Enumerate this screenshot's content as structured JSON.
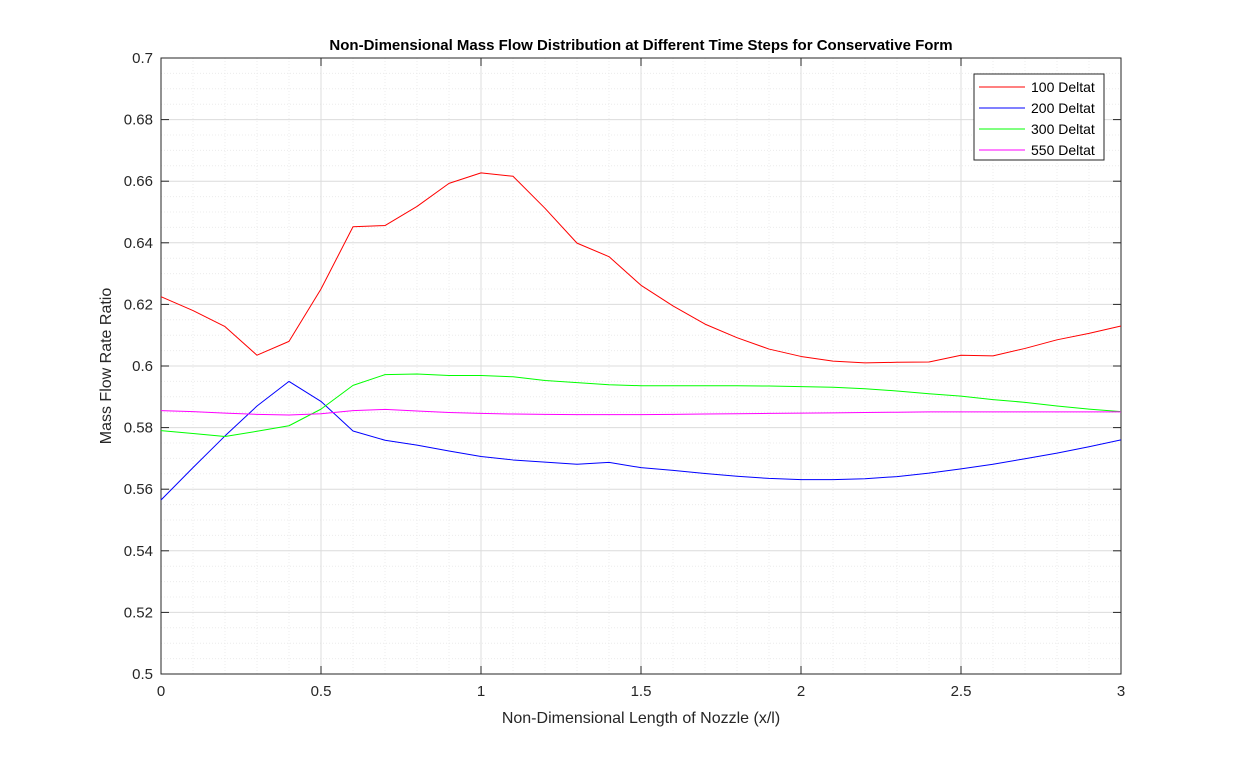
{
  "chart_data": {
    "type": "line",
    "title": "Non-Dimensional Mass Flow Distribution at Different Time Steps for Conservative Form",
    "xlabel": "Non-Dimensional Length of Nozzle (x/l)",
    "ylabel": "Mass Flow Rate Ratio",
    "xlim": [
      0,
      3
    ],
    "ylim": [
      0.5,
      0.7
    ],
    "xticks": [
      0,
      0.5,
      1,
      1.5,
      2,
      2.5,
      3
    ],
    "xtick_labels": [
      "0",
      "0.5",
      "1",
      "1.5",
      "2",
      "2.5",
      "3"
    ],
    "yticks": [
      0.5,
      0.52,
      0.54,
      0.56,
      0.58,
      0.6,
      0.62,
      0.64,
      0.66,
      0.68,
      0.7
    ],
    "ytick_labels": [
      "0.5",
      "0.52",
      "0.54",
      "0.56",
      "0.58",
      "0.6",
      "0.62",
      "0.64",
      "0.66",
      "0.68",
      "0.7"
    ],
    "grid": true,
    "minor_grid": true,
    "legend_position": "top-right",
    "x": [
      0,
      0.1,
      0.2,
      0.3,
      0.4,
      0.5,
      0.6,
      0.7,
      0.8,
      0.9,
      1.0,
      1.1,
      1.2,
      1.3,
      1.4,
      1.5,
      1.6,
      1.7,
      1.8,
      1.9,
      2.0,
      2.1,
      2.2,
      2.3,
      2.4,
      2.5,
      2.6,
      2.7,
      2.8,
      2.9,
      3.0
    ],
    "series": [
      {
        "name": "100 Deltat",
        "color": "#ff0000",
        "values": [
          0.6225,
          0.618,
          0.6128,
          0.6035,
          0.608,
          0.625,
          0.6452,
          0.6456,
          0.6518,
          0.6593,
          0.6627,
          0.6616,
          0.6512,
          0.6399,
          0.6355,
          0.6262,
          0.6195,
          0.6136,
          0.6092,
          0.6055,
          0.6031,
          0.6016,
          0.601,
          0.6012,
          0.6013,
          0.6035,
          0.6033,
          0.6057,
          0.6085,
          0.6106,
          0.613
        ]
      },
      {
        "name": "200 Deltat",
        "color": "#0000ff",
        "values": [
          0.5565,
          0.567,
          0.5773,
          0.587,
          0.595,
          0.5885,
          0.5789,
          0.5759,
          0.5743,
          0.5724,
          0.5706,
          0.5695,
          0.5688,
          0.5681,
          0.5687,
          0.567,
          0.5661,
          0.5651,
          0.5642,
          0.5635,
          0.5631,
          0.5631,
          0.5634,
          0.5641,
          0.5652,
          0.5666,
          0.5681,
          0.5699,
          0.5717,
          0.5738,
          0.576
        ]
      },
      {
        "name": "300 Deltat",
        "color": "#00ff00",
        "values": [
          0.579,
          0.5781,
          0.5771,
          0.5788,
          0.5806,
          0.586,
          0.5937,
          0.5972,
          0.5974,
          0.5969,
          0.5969,
          0.5965,
          0.5953,
          0.5946,
          0.5939,
          0.5936,
          0.5936,
          0.5936,
          0.5936,
          0.5935,
          0.5933,
          0.5931,
          0.5926,
          0.5919,
          0.591,
          0.5902,
          0.5891,
          0.5882,
          0.587,
          0.586,
          0.5852
        ]
      },
      {
        "name": "550 Deltat",
        "color": "#ff00ff",
        "values": [
          0.5855,
          0.5852,
          0.5847,
          0.5843,
          0.5841,
          0.5845,
          0.5855,
          0.5859,
          0.5854,
          0.5849,
          0.5846,
          0.5844,
          0.5843,
          0.5842,
          0.5842,
          0.5842,
          0.5843,
          0.5844,
          0.5845,
          0.5846,
          0.5847,
          0.5848,
          0.5849,
          0.585,
          0.5851,
          0.5851,
          0.5851,
          0.5851,
          0.5851,
          0.5851,
          0.5851
        ]
      }
    ]
  }
}
